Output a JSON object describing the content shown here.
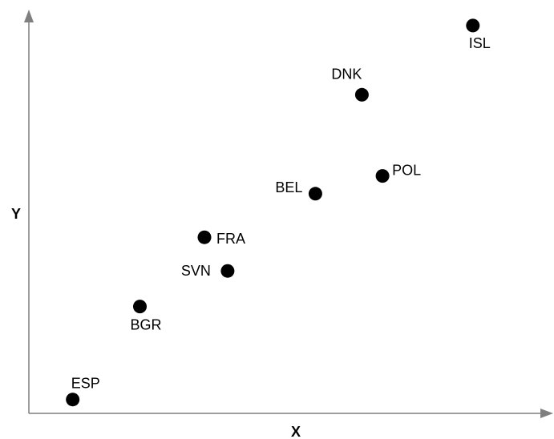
{
  "chart_data": {
    "type": "scatter",
    "title": "",
    "xlabel": "X",
    "ylabel": "Y",
    "xlim": [
      0,
      100
    ],
    "ylim": [
      0,
      100
    ],
    "grid": false,
    "legend": "none",
    "point_color": "#000000",
    "axis_color": "#7f7f7f",
    "points": [
      {
        "label": "ESP",
        "x": 8.5,
        "y": 3.5
      },
      {
        "label": "BGR",
        "x": 21.5,
        "y": 27
      },
      {
        "label": "FRA",
        "x": 34,
        "y": 44.5
      },
      {
        "label": "SVN",
        "x": 38.5,
        "y": 36
      },
      {
        "label": "BEL",
        "x": 55.5,
        "y": 55.5
      },
      {
        "label": "POL",
        "x": 68.5,
        "y": 60
      },
      {
        "label": "DNK",
        "x": 64.5,
        "y": 80.5
      },
      {
        "label": "ISL",
        "x": 86,
        "y": 98
      }
    ]
  }
}
